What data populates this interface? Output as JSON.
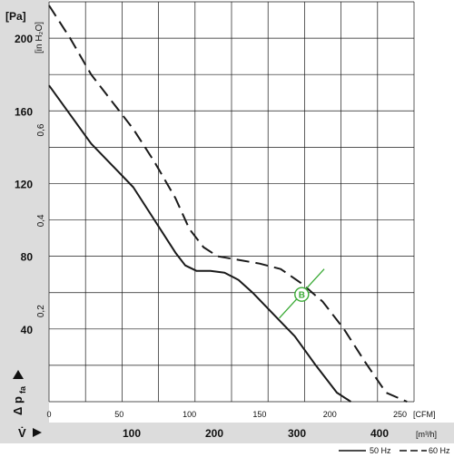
{
  "chart_data": {
    "type": "line",
    "title": "",
    "left_axis": {
      "unit": "[Pa]",
      "ticks": [
        "200",
        "160",
        "120",
        "80",
        "40"
      ],
      "ylim": [
        0,
        220
      ]
    },
    "inner_axis": {
      "unit": "[in H₂O]",
      "ticks": [
        "0,6",
        "0,4",
        "0,2"
      ]
    },
    "y_symbol": "Δ p",
    "y_subscript": "fa",
    "x_symbol": "V̇",
    "bottom_axis_cfm": {
      "unit": "[CFM]",
      "ticks": [
        "0",
        "50",
        "100",
        "150",
        "200",
        "250"
      ],
      "xlim": [
        0,
        260
      ]
    },
    "bottom_axis_m3h": {
      "unit": "[m³/h]",
      "ticks": [
        "100",
        "200",
        "300",
        "400"
      ]
    },
    "series": [
      {
        "name": "50 Hz",
        "style": "solid",
        "x": [
          0,
          15,
          30,
          45,
          60,
          75,
          90,
          97,
          105,
          115,
          125,
          135,
          145,
          160,
          175,
          190,
          205,
          215
        ],
        "y": [
          174,
          158,
          142,
          130,
          118,
          100,
          82,
          75,
          72,
          72,
          71,
          67,
          60,
          48,
          36,
          20,
          5,
          0
        ]
      },
      {
        "name": "60 Hz",
        "style": "dashed",
        "x": [
          0,
          15,
          30,
          45,
          60,
          75,
          90,
          100,
          110,
          120,
          135,
          150,
          165,
          180,
          195,
          210,
          225,
          240,
          255
        ],
        "y": [
          218,
          200,
          180,
          165,
          150,
          132,
          112,
          95,
          85,
          80,
          78,
          76,
          73,
          65,
          55,
          40,
          22,
          5,
          0
        ]
      }
    ],
    "marker": {
      "label": "B",
      "x": 180,
      "y": 59
    },
    "legend_position": "bottom-right",
    "grid": true,
    "colors": {
      "curve": "#1a1a1a",
      "marker": "#3aaa35",
      "band": "#dcdcdc",
      "grid": "#1a1a1a"
    }
  }
}
